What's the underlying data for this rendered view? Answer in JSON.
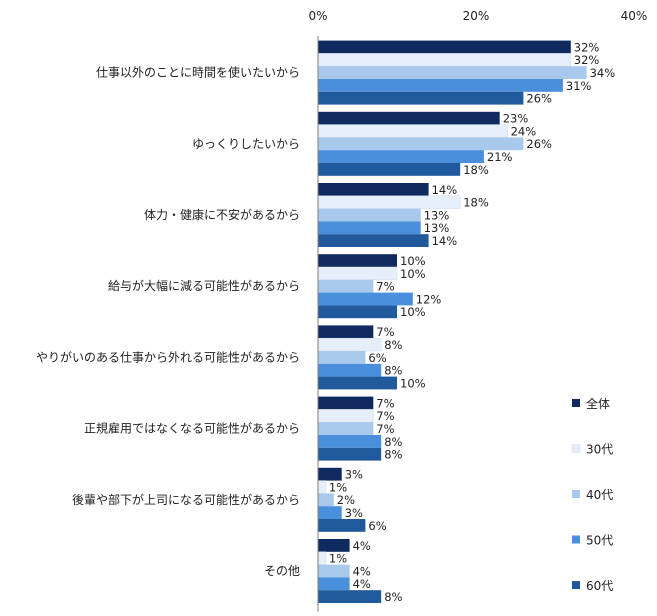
{
  "chart_data": {
    "type": "bar",
    "orientation": "horizontal",
    "categories": [
      "仕事以外のことに時間を使いたいから",
      "ゆっくりしたいから",
      "体力・健康に不安があるから",
      "給与が大幅に減る可能性があるから",
      "やりがいのある仕事から外れる可能性があるから",
      "正規雇用ではなくなる可能性があるから",
      "後輩や部下が上司になる可能性があるから",
      "その他"
    ],
    "series": [
      {
        "name": "全体",
        "color": "#0e2a5e",
        "values": [
          32,
          23,
          14,
          10,
          7,
          7,
          3,
          4
        ]
      },
      {
        "name": "30代",
        "color": "#e6eefa",
        "values": [
          32,
          24,
          18,
          10,
          8,
          7,
          1,
          1
        ]
      },
      {
        "name": "40代",
        "color": "#a9c9ec",
        "values": [
          34,
          26,
          13,
          7,
          6,
          7,
          2,
          4
        ]
      },
      {
        "name": "50代",
        "color": "#4a8fdc",
        "values": [
          31,
          21,
          13,
          12,
          8,
          8,
          3,
          4
        ]
      },
      {
        "name": "60代",
        "color": "#215a9c",
        "values": [
          26,
          18,
          14,
          10,
          10,
          8,
          6,
          8
        ]
      }
    ],
    "value_suffix": "%",
    "xlim": [
      0,
      40
    ],
    "xticks": [
      "0%",
      "20%",
      "40%"
    ],
    "axis_position": "top",
    "grid": false,
    "legend_position": "right"
  }
}
